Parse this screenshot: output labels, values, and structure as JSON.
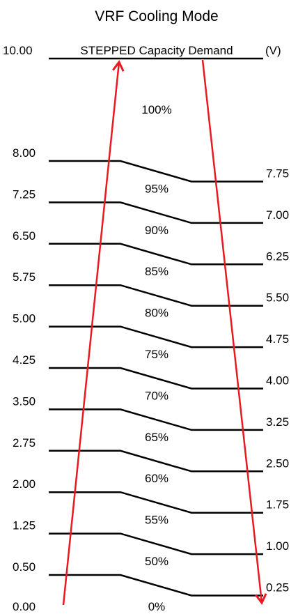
{
  "title": "VRF  Cooling Mode",
  "header": {
    "top_value": "10.00",
    "label": "STEPPED Capacity Demand",
    "unit": "(V)",
    "top_percent": "100%"
  },
  "bottom": {
    "left_value": "0.00",
    "percent": "0%"
  },
  "steps": [
    {
      "percent": "95%",
      "rising": "8.00",
      "falling": "7.75"
    },
    {
      "percent": "90%",
      "rising": "7.25",
      "falling": "7.00"
    },
    {
      "percent": "85%",
      "rising": "6.50",
      "falling": "6.25"
    },
    {
      "percent": "80%",
      "rising": "5.75",
      "falling": "5.50"
    },
    {
      "percent": "75%",
      "rising": "5.00",
      "falling": "4.75"
    },
    {
      "percent": "70%",
      "rising": "4.25",
      "falling": "4.00"
    },
    {
      "percent": "65%",
      "rising": "3.50",
      "falling": "3.25"
    },
    {
      "percent": "60%",
      "rising": "2.75",
      "falling": "2.50"
    },
    {
      "percent": "55%",
      "rising": "2.00",
      "falling": "1.75"
    },
    {
      "percent": "50%",
      "rising": "1.25",
      "falling": "1.00"
    },
    {
      "percent": "",
      "rising": "0.50",
      "falling": "0.25"
    }
  ],
  "arrow_color": "#e8191f",
  "line_color": "#000000"
}
